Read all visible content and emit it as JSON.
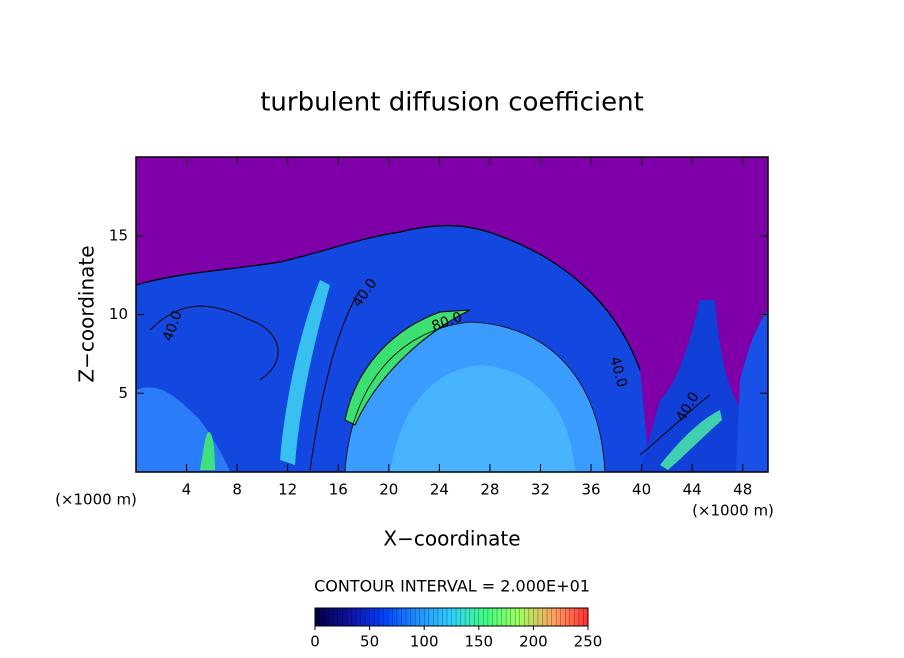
{
  "chart_data": {
    "type": "contour",
    "title": "turbulent diffusion coefficient",
    "xlabel": "X−coordinate",
    "ylabel": "Z−coordinate",
    "x_unit": "(×1000 m)",
    "xlim": [
      0,
      50
    ],
    "xticks": [
      4,
      8,
      12,
      16,
      20,
      24,
      28,
      32,
      36,
      40,
      44,
      48
    ],
    "ylim": [
      0,
      20
    ],
    "yticks": [
      5,
      10,
      15
    ],
    "contour_interval": "CONTOUR INTERVAL = 2.000E+01",
    "contour_labels": [
      "40.0",
      "40.0",
      "80.0",
      "40.0",
      "40.0"
    ],
    "colorbar": {
      "lim": [
        0,
        250
      ],
      "ticks": [
        0,
        50,
        100,
        150,
        200,
        250
      ],
      "colors": [
        "#000040",
        "#1010a0",
        "#0040ff",
        "#2090ff",
        "#30d0ff",
        "#40ff80",
        "#a0ff60",
        "#ffa060",
        "#ff3030"
      ]
    },
    "background_color": "#7f00a8"
  }
}
